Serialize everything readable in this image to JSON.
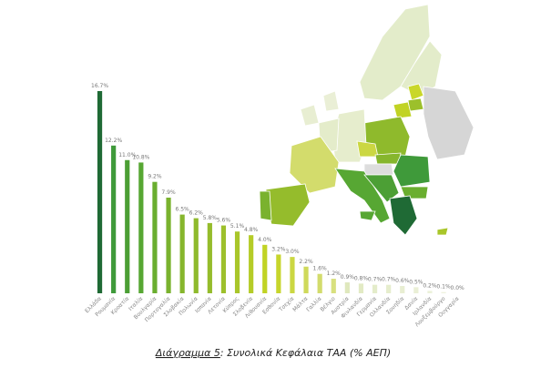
{
  "chart_data": {
    "type": "bar",
    "title_label": "Διάγραμμα 5",
    "title": ": Συνολικά Κεφάλαια ΤΑΑ (% ΑΕΠ)",
    "categories": [
      "Ελλάδα",
      "Ρουμανία",
      "Κροατία",
      "Ιταλία",
      "Βουλγαρία",
      "Πορτογαλία",
      "Σλοβακία",
      "Πολωνία",
      "Ισπανία",
      "Λετονία",
      "Κύπρος",
      "Σλοβενία",
      "Λιθουανία",
      "Εσθονία",
      "Τσεχία",
      "Μάλτα",
      "Γαλλία",
      "Βέλγιο",
      "Αυστρία",
      "Φινλανδία",
      "Γερμανία",
      "Ολλανδία",
      "Σουηδία",
      "Δανία",
      "Ιρλανδία",
      "Λουξεμβούργο",
      "Ουγγαρία"
    ],
    "values": [
      16.7,
      12.2,
      11.0,
      10.8,
      9.2,
      7.9,
      6.5,
      6.2,
      5.8,
      5.6,
      5.1,
      4.8,
      4.0,
      3.2,
      3.0,
      2.2,
      1.6,
      1.2,
      0.9,
      0.8,
      0.7,
      0.7,
      0.6,
      0.5,
      0.2,
      0.1,
      0.0
    ],
    "value_labels": [
      "16.7%",
      "12.2%",
      "11.0%",
      "10.8%",
      "9.2%",
      "7.9%",
      "6.5%",
      "6.2%",
      "5.8%",
      "5.6%",
      "5.1%",
      "4.8%",
      "4.0%",
      "3.2%",
      "3.0%",
      "2.2%",
      "1.6%",
      "1.2%",
      "0.9%",
      "0.8%",
      "0.7%",
      "0.7%",
      "0.6%",
      "0.5%",
      "0.2%",
      "0.1%",
      "0.0%"
    ],
    "colors": [
      "#1f6a35",
      "#3f9a3a",
      "#4c9f35",
      "#57a733",
      "#6aae2f",
      "#7ab22e",
      "#86b62d",
      "#8fba2c",
      "#95bc2c",
      "#9dc02b",
      "#a9c62a",
      "#b5cc28",
      "#c1d324",
      "#c7d52c",
      "#cbd742",
      "#cfd95a",
      "#d3dc6c",
      "#d8e07e",
      "#dfe8bd",
      "#e2eac4",
      "#e4ecca",
      "#e6edcd",
      "#e8eed2",
      "#eaefd6",
      "#ecf1da",
      "#eef2de",
      "#f0f4e3"
    ]
  }
}
